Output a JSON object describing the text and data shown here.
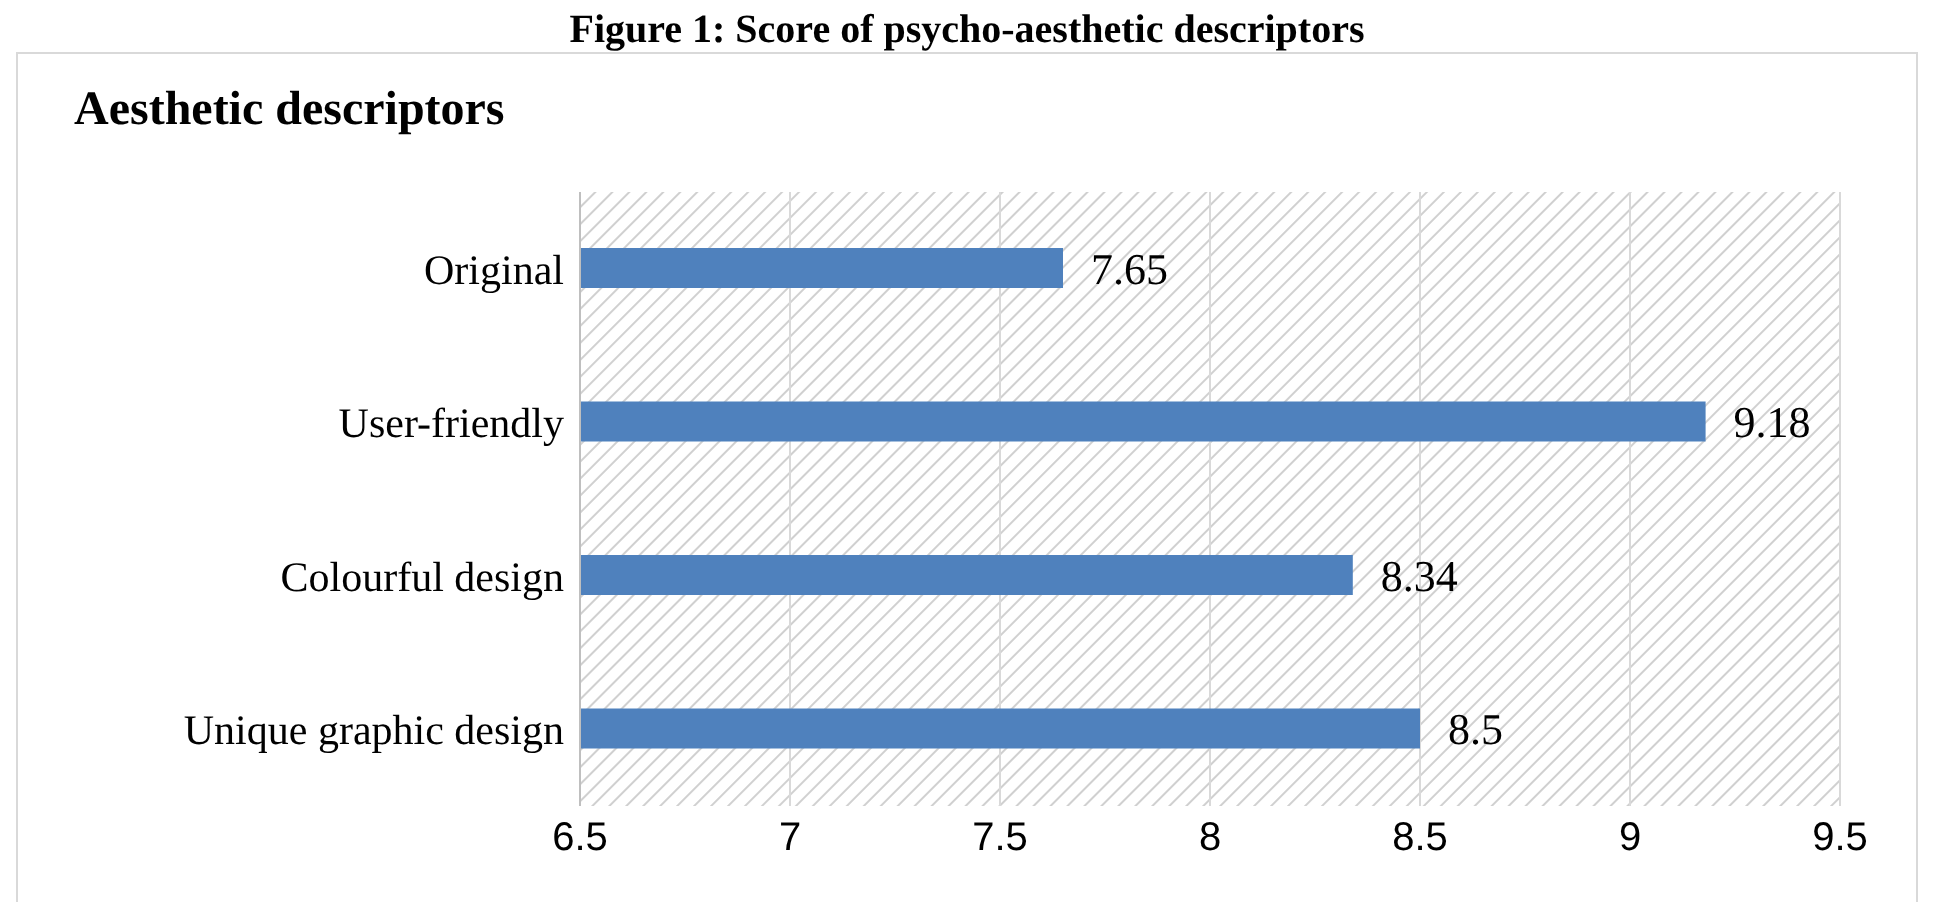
{
  "chart_data": {
    "type": "bar",
    "orientation": "horizontal",
    "title": "Figure 1: Score of psycho-aesthetic descriptors",
    "subtitle": "Aesthetic descriptors",
    "categories": [
      "Original",
      "User-friendly",
      "Colourful design",
      "Unique graphic design"
    ],
    "values": [
      7.65,
      9.18,
      8.34,
      8.5
    ],
    "color": "#4f81bd",
    "xlim": [
      6.5,
      9.5
    ],
    "xticks": [
      6.5,
      7,
      7.5,
      8,
      8.5,
      9,
      9.5
    ],
    "grid": "x",
    "data_labels": true,
    "legend": false
  }
}
